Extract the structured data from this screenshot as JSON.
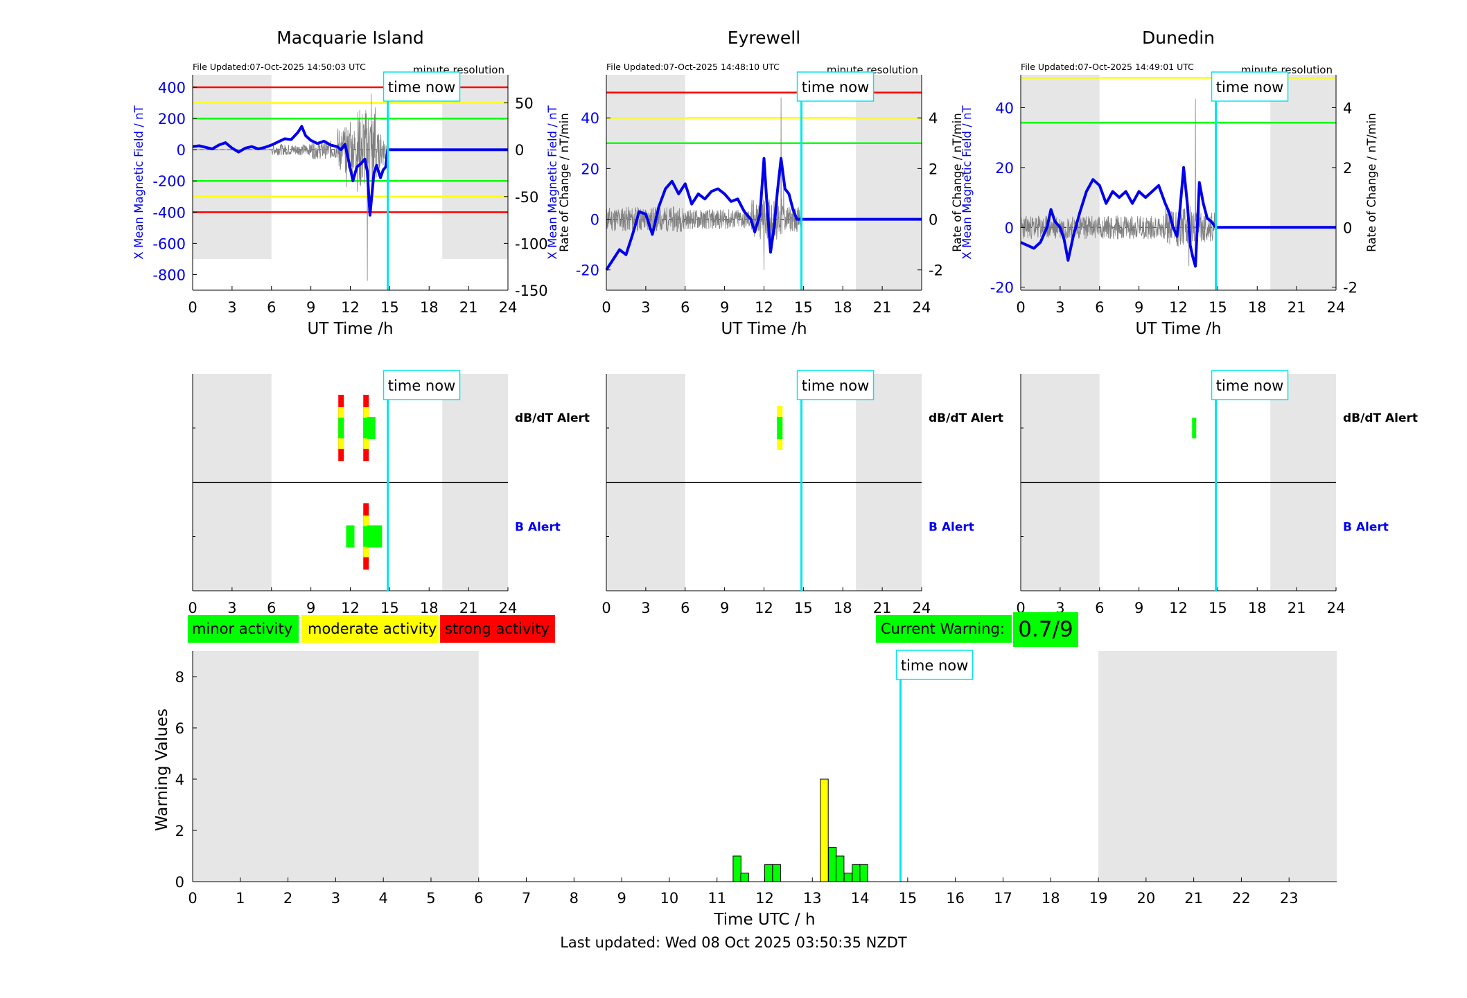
{
  "footer": {
    "last_updated": "Last updated: Wed 08 Oct 2025 03:50:35 NZDT"
  },
  "legend": {
    "minor": "minor activity",
    "moderate": "moderate activity",
    "strong": "strong activity",
    "colors": {
      "minor": "#00ff00",
      "moderate": "#ffff00",
      "strong": "#ff0000"
    }
  },
  "current_warning": {
    "label": "Current Warning:",
    "value": "0.7/9",
    "color": "#00ff00"
  },
  "time_now_label": "time now",
  "colors": {
    "field_trace": "#0000ee",
    "rate_trace": "#808080",
    "time_now_line": "#00e5ee",
    "night_shade": "#e6e6e6",
    "red_level": "#ff0000",
    "yellow_level": "#ffff00",
    "green_level": "#00ff00"
  },
  "chart_data": [
    {
      "type": "line",
      "title": "Macquarie Island",
      "file_updated": "File Updated:07-Oct-2025 14:50:03 UTC",
      "resolution": "minute resolution",
      "xlabel": "UT Time /h",
      "ylabel_left": "X Mean Magnetic Field / nT",
      "ylabel_right": "Rate of Change / nT/min",
      "xlim": [
        0,
        24
      ],
      "xticks": [
        0,
        3,
        6,
        9,
        12,
        15,
        18,
        21,
        24
      ],
      "ylim_left": [
        -900,
        480
      ],
      "yticks_left": [
        400,
        200,
        0,
        -200,
        -400,
        -600,
        -800
      ],
      "ylim_right": [
        -150,
        80
      ],
      "yticks_right": [
        50,
        0,
        -50,
        -100,
        -150
      ],
      "time_now": 14.85,
      "night_shade": [
        [
          0,
          6,
          -700
        ],
        [
          19,
          24,
          -700
        ]
      ],
      "levels": [
        {
          "value": 400,
          "color": "red"
        },
        {
          "value": 300,
          "color": "yellow"
        },
        {
          "value": 200,
          "color": "green"
        },
        {
          "value": -200,
          "color": "green"
        },
        {
          "value": -300,
          "color": "yellow"
        },
        {
          "value": -400,
          "color": "red"
        }
      ],
      "field_series": {
        "x": [
          0,
          0.5,
          1,
          1.5,
          2,
          2.5,
          3,
          3.5,
          4,
          4.5,
          5,
          5.5,
          6,
          6.5,
          7,
          7.5,
          8,
          8.3,
          8.6,
          9,
          9.5,
          10,
          10.5,
          11,
          11.3,
          11.6,
          11.9,
          12.2,
          12.5,
          12.8,
          13.1,
          13.3,
          13.5,
          13.8,
          14.0,
          14.3,
          14.5,
          14.7,
          14.85,
          24
        ],
        "values": [
          20,
          25,
          15,
          5,
          30,
          45,
          10,
          -15,
          10,
          20,
          5,
          15,
          30,
          50,
          70,
          65,
          110,
          150,
          90,
          60,
          40,
          55,
          30,
          20,
          0,
          35,
          -80,
          -200,
          -110,
          -90,
          -60,
          -140,
          -420,
          -150,
          -100,
          -180,
          -130,
          -110,
          0,
          0
        ]
      },
      "rate_series": {
        "seed": 7,
        "noise": [
          [
            6,
            9,
            6
          ],
          [
            9,
            11,
            10
          ],
          [
            11,
            12.5,
            25
          ],
          [
            12.5,
            14,
            45
          ],
          [
            14,
            14.85,
            18
          ]
        ],
        "spikes": [
          [
            11.7,
            -40
          ],
          [
            12.0,
            30
          ],
          [
            13.3,
            -140
          ],
          [
            13.6,
            60
          ],
          [
            13.9,
            45
          ],
          [
            14.2,
            -20
          ]
        ]
      },
      "alert_dbdt": [
        {
          "x": 11.3,
          "color": "strong"
        },
        {
          "x": 13.2,
          "color": "strong"
        },
        {
          "x": 13.6,
          "color": "minor"
        }
      ],
      "alert_b": [
        {
          "x": 12.0,
          "color": "minor"
        },
        {
          "x": 13.2,
          "color": "strong"
        },
        {
          "x": 13.6,
          "color": "minor"
        },
        {
          "x": 14.1,
          "color": "minor"
        }
      ],
      "alert_labels": {
        "dbdt": "dB/dT Alert",
        "b": "B Alert"
      }
    },
    {
      "type": "line",
      "title": "Eyrewell",
      "file_updated": "File Updated:07-Oct-2025 14:48:10 UTC",
      "resolution": "minute resolution",
      "xlabel": "UT Time /h",
      "ylabel_left": "X Mean Magnetic Field / nT",
      "ylabel_right": "Rate of Change / nT/min",
      "xlim": [
        0,
        24
      ],
      "xticks": [
        0,
        3,
        6,
        9,
        12,
        15,
        18,
        21,
        24
      ],
      "ylim_left": [
        -28,
        57
      ],
      "yticks_left": [
        40,
        20,
        0,
        -20
      ],
      "ylim_right": [
        -2.8,
        5.7
      ],
      "yticks_right": [
        4,
        2,
        0,
        -2
      ],
      "time_now": 14.85,
      "night_shade": [
        [
          0,
          6,
          -28
        ],
        [
          19,
          24,
          -28
        ]
      ],
      "levels": [
        {
          "value": 50,
          "color": "red"
        },
        {
          "value": 40,
          "color": "yellow"
        },
        {
          "value": 30,
          "color": "green"
        }
      ],
      "field_series": {
        "x": [
          0,
          0.5,
          1,
          1.5,
          2,
          2.5,
          3,
          3.5,
          4,
          4.5,
          5,
          5.5,
          6,
          6.5,
          7,
          7.5,
          8,
          8.5,
          9,
          9.5,
          10,
          10.5,
          11,
          11.3,
          11.7,
          12.0,
          12.2,
          12.5,
          12.8,
          13.0,
          13.3,
          13.6,
          13.9,
          14.2,
          14.5,
          14.85,
          24
        ],
        "values": [
          -20,
          -16,
          -12,
          -14,
          -6,
          3,
          2,
          -6,
          5,
          12,
          15,
          10,
          14,
          6,
          10,
          8,
          11,
          12,
          10,
          7,
          8,
          3,
          0,
          -5,
          2,
          24,
          8,
          -13,
          -2,
          10,
          24,
          12,
          10,
          4,
          0,
          0,
          0
        ]
      },
      "rate_series": {
        "seed": 11,
        "noise": [
          [
            0,
            6,
            0.5
          ],
          [
            6,
            11,
            0.4
          ],
          [
            11,
            13.5,
            0.8
          ],
          [
            13.5,
            14.85,
            0.5
          ]
        ],
        "spikes": [
          [
            12.0,
            -2.0
          ],
          [
            13.3,
            4.8
          ],
          [
            13.5,
            1.5
          ]
        ]
      },
      "alert_dbdt": [
        {
          "x": 13.2,
          "color": "moderate"
        }
      ],
      "alert_b": [],
      "alert_labels": {
        "dbdt": "dB/dT Alert",
        "b": "B Alert"
      }
    },
    {
      "type": "line",
      "title": "Dunedin",
      "file_updated": "File Updated:07-Oct-2025 14:49:01 UTC",
      "resolution": "minute resolution",
      "xlabel": "UT Time /h",
      "ylabel_left": "X Mean Magnetic Field / nT",
      "ylabel_right": "Rate of Change / nT/min",
      "xlim": [
        0,
        24
      ],
      "xticks": [
        0,
        3,
        6,
        9,
        12,
        15,
        18,
        21,
        24
      ],
      "ylim_left": [
        -21,
        51
      ],
      "yticks_left": [
        40,
        20,
        0,
        -20
      ],
      "ylim_right": [
        -2.1,
        5.1
      ],
      "yticks_right": [
        4,
        2,
        0,
        -2
      ],
      "time_now": 14.85,
      "night_shade": [
        [
          0,
          6,
          -21
        ],
        [
          19,
          24,
          -21
        ]
      ],
      "levels": [
        {
          "value": 50,
          "color": "yellow"
        },
        {
          "value": 35,
          "color": "green"
        }
      ],
      "field_series": {
        "x": [
          0,
          0.5,
          1,
          1.5,
          2,
          2.3,
          2.6,
          3.0,
          3.3,
          3.6,
          4,
          4.5,
          5,
          5.5,
          6,
          6.5,
          7,
          7.5,
          8,
          8.5,
          9,
          9.5,
          10,
          10.5,
          11,
          11.3,
          11.6,
          11.9,
          12.1,
          12.4,
          12.7,
          12.9,
          13.1,
          13.3,
          13.6,
          13.9,
          14.2,
          14.5,
          14.85,
          24
        ],
        "values": [
          -5,
          -6,
          -7,
          -5,
          0,
          6,
          2,
          0,
          -4,
          -11,
          -3,
          5,
          12,
          16,
          14,
          8,
          12,
          10,
          12,
          8,
          12,
          10,
          12,
          14,
          8,
          5,
          0,
          -3,
          5,
          20,
          7,
          -6,
          -10,
          -13,
          15,
          8,
          3,
          2,
          0,
          0
        ]
      },
      "rate_series": {
        "seed": 23,
        "noise": [
          [
            0,
            6,
            0.4
          ],
          [
            6,
            11,
            0.4
          ],
          [
            11,
            13.0,
            0.7
          ],
          [
            13.0,
            14.85,
            0.5
          ]
        ],
        "spikes": [
          [
            13.3,
            4.3
          ],
          [
            12.8,
            -1.3
          ],
          [
            13.6,
            1.2
          ]
        ]
      },
      "alert_dbdt": [
        {
          "x": 13.2,
          "color": "minor-small"
        }
      ],
      "alert_b": [],
      "alert_labels": {
        "dbdt": "dB/dT Alert",
        "b": "B Alert"
      }
    },
    {
      "type": "bar",
      "xlabel": "Time UTC / h",
      "ylabel": "Warning Values",
      "xlim": [
        0,
        24
      ],
      "xticks": [
        0,
        1,
        2,
        3,
        4,
        5,
        6,
        7,
        8,
        9,
        10,
        11,
        12,
        13,
        14,
        15,
        16,
        17,
        18,
        19,
        20,
        21,
        22,
        23
      ],
      "ylim": [
        0,
        9
      ],
      "yticks": [
        0,
        2,
        4,
        6,
        8
      ],
      "time_now": 14.85,
      "night_shade": [
        [
          0,
          6
        ],
        [
          19,
          24
        ]
      ],
      "bar_width": 0.166,
      "bars": [
        {
          "x": 11.42,
          "value": 1.0,
          "color": "minor"
        },
        {
          "x": 11.58,
          "value": 0.333,
          "color": "minor"
        },
        {
          "x": 12.08,
          "value": 0.667,
          "color": "minor"
        },
        {
          "x": 12.25,
          "value": 0.667,
          "color": "minor"
        },
        {
          "x": 13.25,
          "value": 4.0,
          "color": "moderate"
        },
        {
          "x": 13.42,
          "value": 1.333,
          "color": "minor"
        },
        {
          "x": 13.58,
          "value": 1.0,
          "color": "minor"
        },
        {
          "x": 13.75,
          "value": 0.333,
          "color": "minor"
        },
        {
          "x": 13.92,
          "value": 0.667,
          "color": "minor"
        },
        {
          "x": 14.08,
          "value": 0.667,
          "color": "minor"
        }
      ]
    }
  ]
}
